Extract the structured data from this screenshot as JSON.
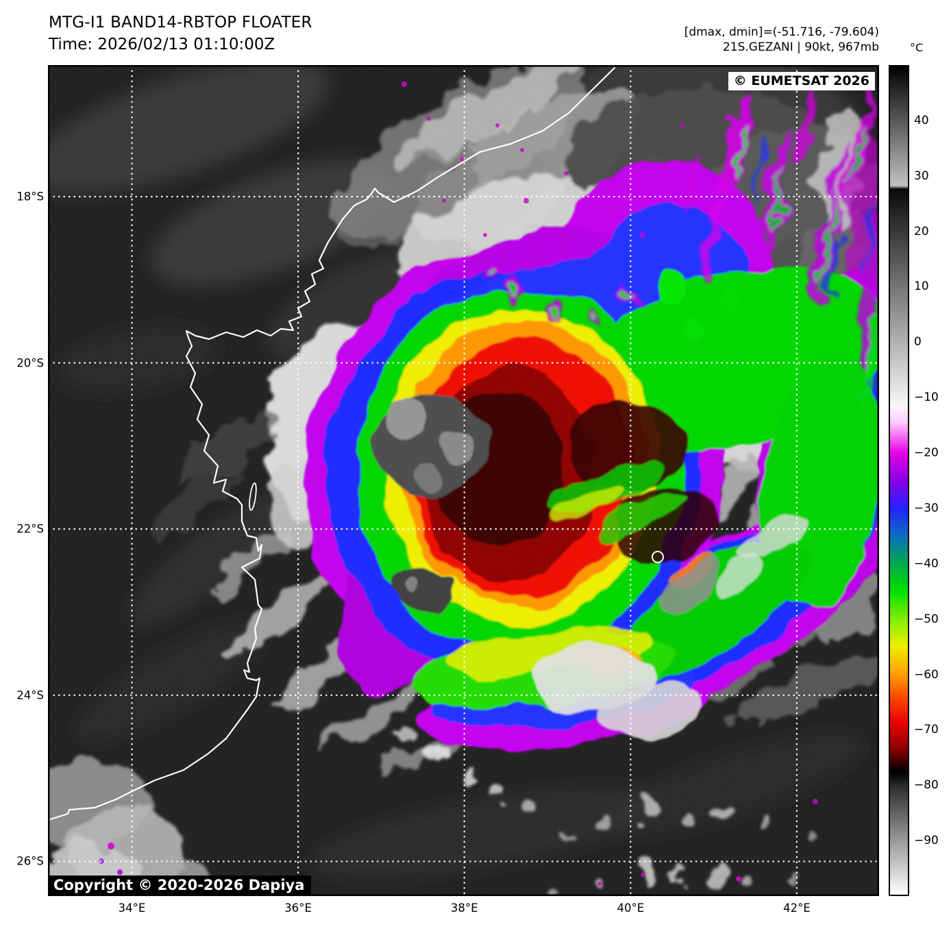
{
  "header": {
    "title_line1": "MTG-I1 BAND14-RBTOP FLOATER",
    "title_line2": "Time: 2026/02/13 01:10:00Z",
    "info_line1": "[dmax, dmin]=(-51.716, -79.604)",
    "info_line2": "21S.GEZANI | 90kt, 967mb",
    "units_label": "°C"
  },
  "map": {
    "copyright_overlay": "© EUMETSAT 2026",
    "copyright_bottom": "Copyright © 2020-2026 Dapiya",
    "lat_range": [
      16.417,
      26.417
    ],
    "lon_range": [
      32.99,
      42.99
    ],
    "lat_ticks": [
      {
        "label": "18°S",
        "lat": 18
      },
      {
        "label": "20°S",
        "lat": 20
      },
      {
        "label": "22°S",
        "lat": 22
      },
      {
        "label": "24°S",
        "lat": 24
      },
      {
        "label": "26°S",
        "lat": 26
      }
    ],
    "lon_ticks": [
      {
        "label": "34°E",
        "lon": 34
      },
      {
        "label": "36°E",
        "lon": 36
      },
      {
        "label": "38°E",
        "lon": 38
      },
      {
        "label": "40°E",
        "lon": 40
      },
      {
        "label": "42°E",
        "lon": 42
      }
    ]
  },
  "colorbar": {
    "value_max": 50,
    "value_min": -100,
    "ticks": [
      {
        "value": 40,
        "label": "40"
      },
      {
        "value": 30,
        "label": "30"
      },
      {
        "value": 20,
        "label": "20"
      },
      {
        "value": 10,
        "label": "10"
      },
      {
        "value": 0,
        "label": "0"
      },
      {
        "value": -10,
        "label": "−10"
      },
      {
        "value": -20,
        "label": "−20"
      },
      {
        "value": -30,
        "label": "−30"
      },
      {
        "value": -40,
        "label": "−40"
      },
      {
        "value": -50,
        "label": "−50"
      },
      {
        "value": -60,
        "label": "−60"
      },
      {
        "value": -70,
        "label": "−70"
      },
      {
        "value": -80,
        "label": "−80"
      },
      {
        "value": -90,
        "label": "−90"
      }
    ],
    "stops": [
      {
        "p": 0.0,
        "c": "#000000"
      },
      {
        "p": 14.4,
        "c": "#c2c2c2"
      },
      {
        "p": 14.8,
        "c": "#0a0a0a"
      },
      {
        "p": 41.0,
        "c": "#f8f8f8"
      },
      {
        "p": 43.0,
        "c": "#ffc8ff"
      },
      {
        "p": 46.7,
        "c": "#e600e6"
      },
      {
        "p": 50.0,
        "c": "#8a00e6"
      },
      {
        "p": 53.3,
        "c": "#2222ff"
      },
      {
        "p": 56.7,
        "c": "#0a6fc0"
      },
      {
        "p": 60.0,
        "c": "#00a84e"
      },
      {
        "p": 63.3,
        "c": "#00e000"
      },
      {
        "p": 66.7,
        "c": "#7fee00"
      },
      {
        "p": 70.0,
        "c": "#eeee00"
      },
      {
        "p": 73.3,
        "c": "#ffa000"
      },
      {
        "p": 76.3,
        "c": "#ff4400"
      },
      {
        "p": 79.3,
        "c": "#e80000"
      },
      {
        "p": 82.0,
        "c": "#9a0000"
      },
      {
        "p": 84.6,
        "c": "#1c0000"
      },
      {
        "p": 85.2,
        "c": "#000000"
      },
      {
        "p": 87.0,
        "c": "#2e2e2e"
      },
      {
        "p": 93.3,
        "c": "#979797"
      },
      {
        "p": 100.0,
        "c": "#ffffff"
      }
    ]
  }
}
